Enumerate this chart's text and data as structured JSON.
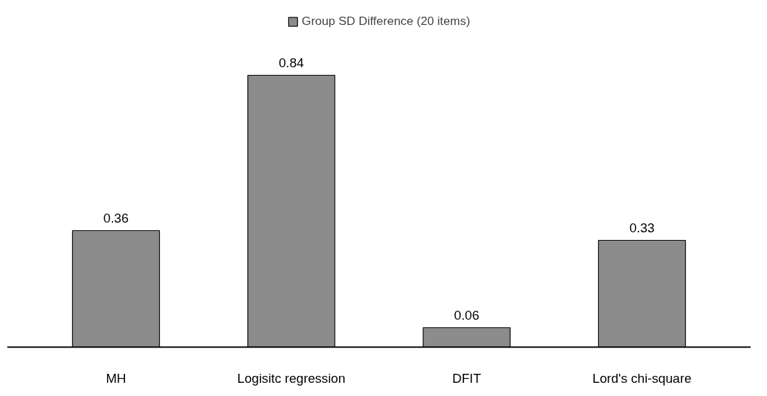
{
  "chart_data": {
    "type": "bar",
    "categories": [
      "MH",
      "Logisitc regression",
      "DFIT",
      "Lord's chi-square"
    ],
    "series": [
      {
        "name": "Group SD Difference (20 items)",
        "color": "#8c8c8c",
        "values": [
          0.36,
          0.84,
          0.06,
          0.33
        ]
      }
    ],
    "data_labels": true,
    "legend": "top",
    "grid": false
  }
}
